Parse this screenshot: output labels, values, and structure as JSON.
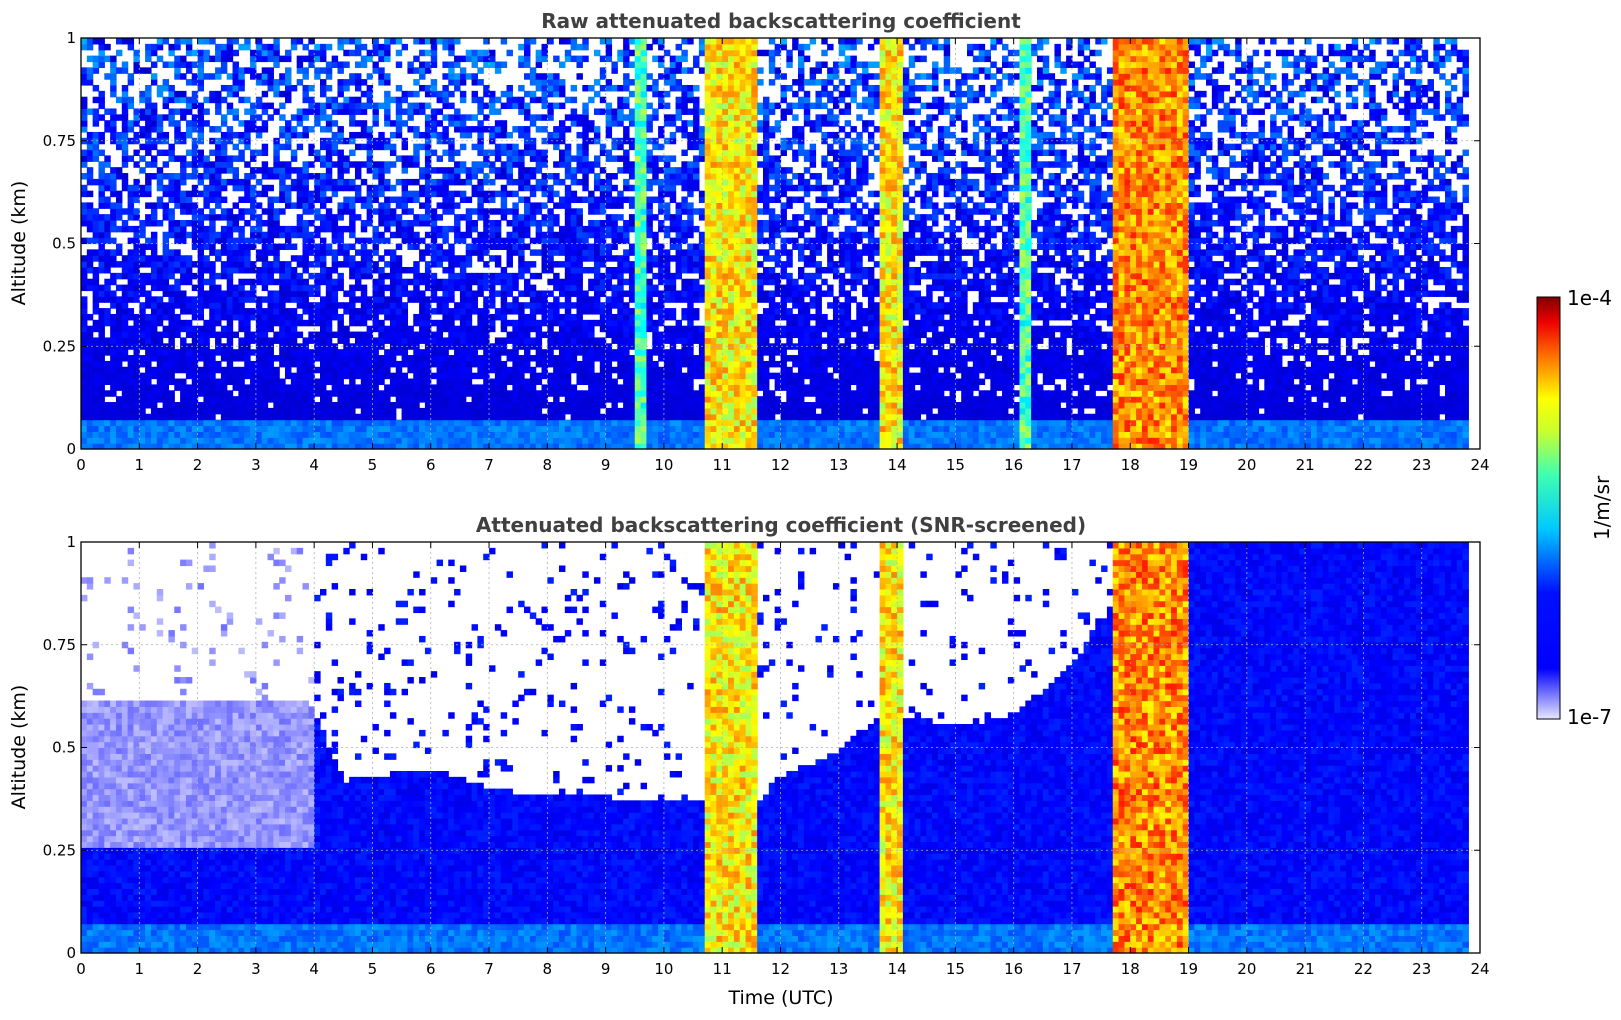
{
  "chart_data": [
    {
      "type": "heatmap",
      "title": "Raw attenuated backscattering coefficient",
      "xlabel": "",
      "ylabel": "Altitude (km)",
      "xlim": [
        0,
        24
      ],
      "ylim": [
        0,
        1
      ],
      "x_ticks": [
        "0",
        "1",
        "2",
        "3",
        "4",
        "5",
        "6",
        "7",
        "8",
        "9",
        "10",
        "11",
        "12",
        "13",
        "14",
        "15",
        "16",
        "17",
        "18",
        "19",
        "20",
        "21",
        "22",
        "23",
        "24"
      ],
      "y_ticks": [
        "0",
        "0.25",
        "0.5",
        "0.75",
        "1"
      ],
      "grid": true,
      "screening": "none",
      "features": [
        {
          "kind": "column",
          "t_start": 10.7,
          "t_end": 11.6,
          "level": "high"
        },
        {
          "kind": "column",
          "t_start": 13.7,
          "t_end": 14.05,
          "level": "high"
        },
        {
          "kind": "column",
          "t_start": 16.15,
          "t_end": 16.3,
          "level": "moderate"
        },
        {
          "kind": "column",
          "t_start": 17.7,
          "t_end": 18.95,
          "level": "very high"
        },
        {
          "kind": "column",
          "t_start": 9.5,
          "t_end": 9.65,
          "level": "moderate"
        },
        {
          "kind": "near-surface layer",
          "alt_max_km": 0.07,
          "level": "moderate"
        }
      ]
    },
    {
      "type": "heatmap",
      "title": "Attenuated backscattering coefficient (SNR-screened)",
      "xlabel": "Time (UTC)",
      "ylabel": "Altitude (km)",
      "xlim": [
        0,
        24
      ],
      "ylim": [
        0,
        1
      ],
      "x_ticks": [
        "0",
        "1",
        "2",
        "3",
        "4",
        "5",
        "6",
        "7",
        "8",
        "9",
        "10",
        "11",
        "12",
        "13",
        "14",
        "15",
        "16",
        "17",
        "18",
        "19",
        "20",
        "21",
        "22",
        "23",
        "24"
      ],
      "y_ticks": [
        "0",
        "0.25",
        "0.5",
        "0.75",
        "1"
      ],
      "grid": true,
      "screening": "SNR",
      "screen_boundary": {
        "time": [
          0,
          2,
          3.9,
          4.5,
          6,
          7,
          8,
          9,
          10,
          10.7,
          11.6,
          12,
          13,
          13.7,
          14.1,
          15,
          16,
          17,
          17.7,
          19,
          24
        ],
        "alt_km": [
          0.62,
          0.62,
          0.62,
          0.42,
          0.45,
          0.4,
          0.38,
          0.38,
          0.37,
          0.37,
          0.37,
          0.43,
          0.49,
          0.58,
          0.58,
          0.55,
          0.58,
          0.7,
          0.85,
          1,
          1
        ]
      },
      "features": [
        {
          "kind": "column",
          "t_start": 10.7,
          "t_end": 11.6,
          "level": "high"
        },
        {
          "kind": "column",
          "t_start": 13.7,
          "t_end": 14.05,
          "level": "high"
        },
        {
          "kind": "column",
          "t_start": 17.7,
          "t_end": 18.95,
          "level": "very high"
        },
        {
          "kind": "near-surface layer",
          "alt_max_km": 0.07,
          "level": "moderate"
        }
      ]
    }
  ],
  "colorbar": {
    "colormap": "jet",
    "scale": "log",
    "min_label": "1e-7",
    "max_label": "1e-4",
    "label": "1/m/sr"
  },
  "colors": {
    "background_low": "#0022ff",
    "title": "#404040"
  }
}
